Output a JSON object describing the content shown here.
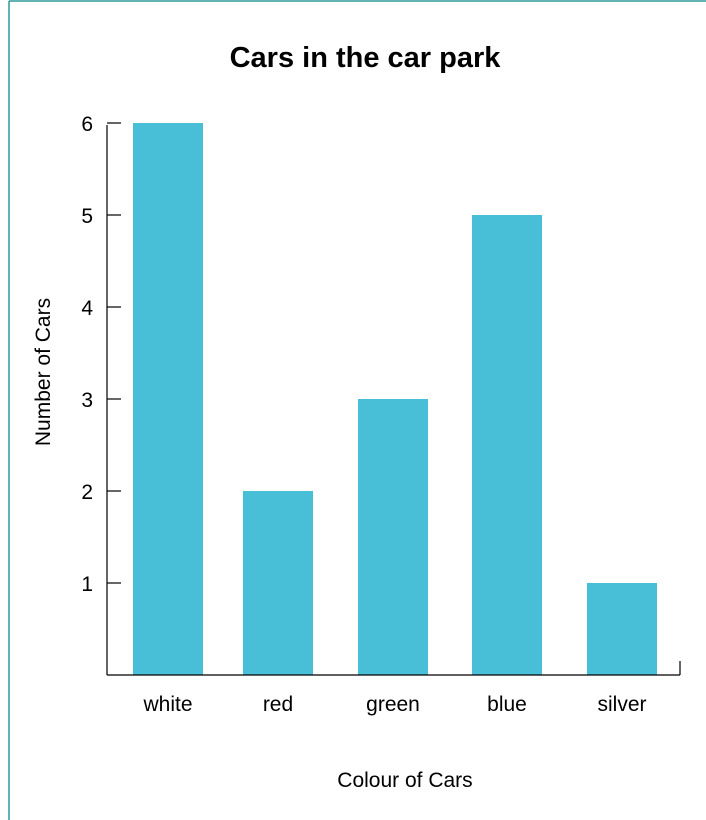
{
  "chart_data": {
    "type": "bar",
    "title": "Cars in the car park",
    "xlabel": "Colour of Cars",
    "ylabel": "Number of Cars",
    "categories": [
      "white",
      "red",
      "green",
      "blue",
      "silver"
    ],
    "values": [
      6,
      2,
      3,
      5,
      1
    ],
    "yticks": [
      "1",
      "2",
      "3",
      "4",
      "5",
      "6"
    ],
    "ylim": [
      0,
      6
    ],
    "grid": false,
    "bar_color": "#48BFD7",
    "border_color": "#2E9C9C"
  }
}
